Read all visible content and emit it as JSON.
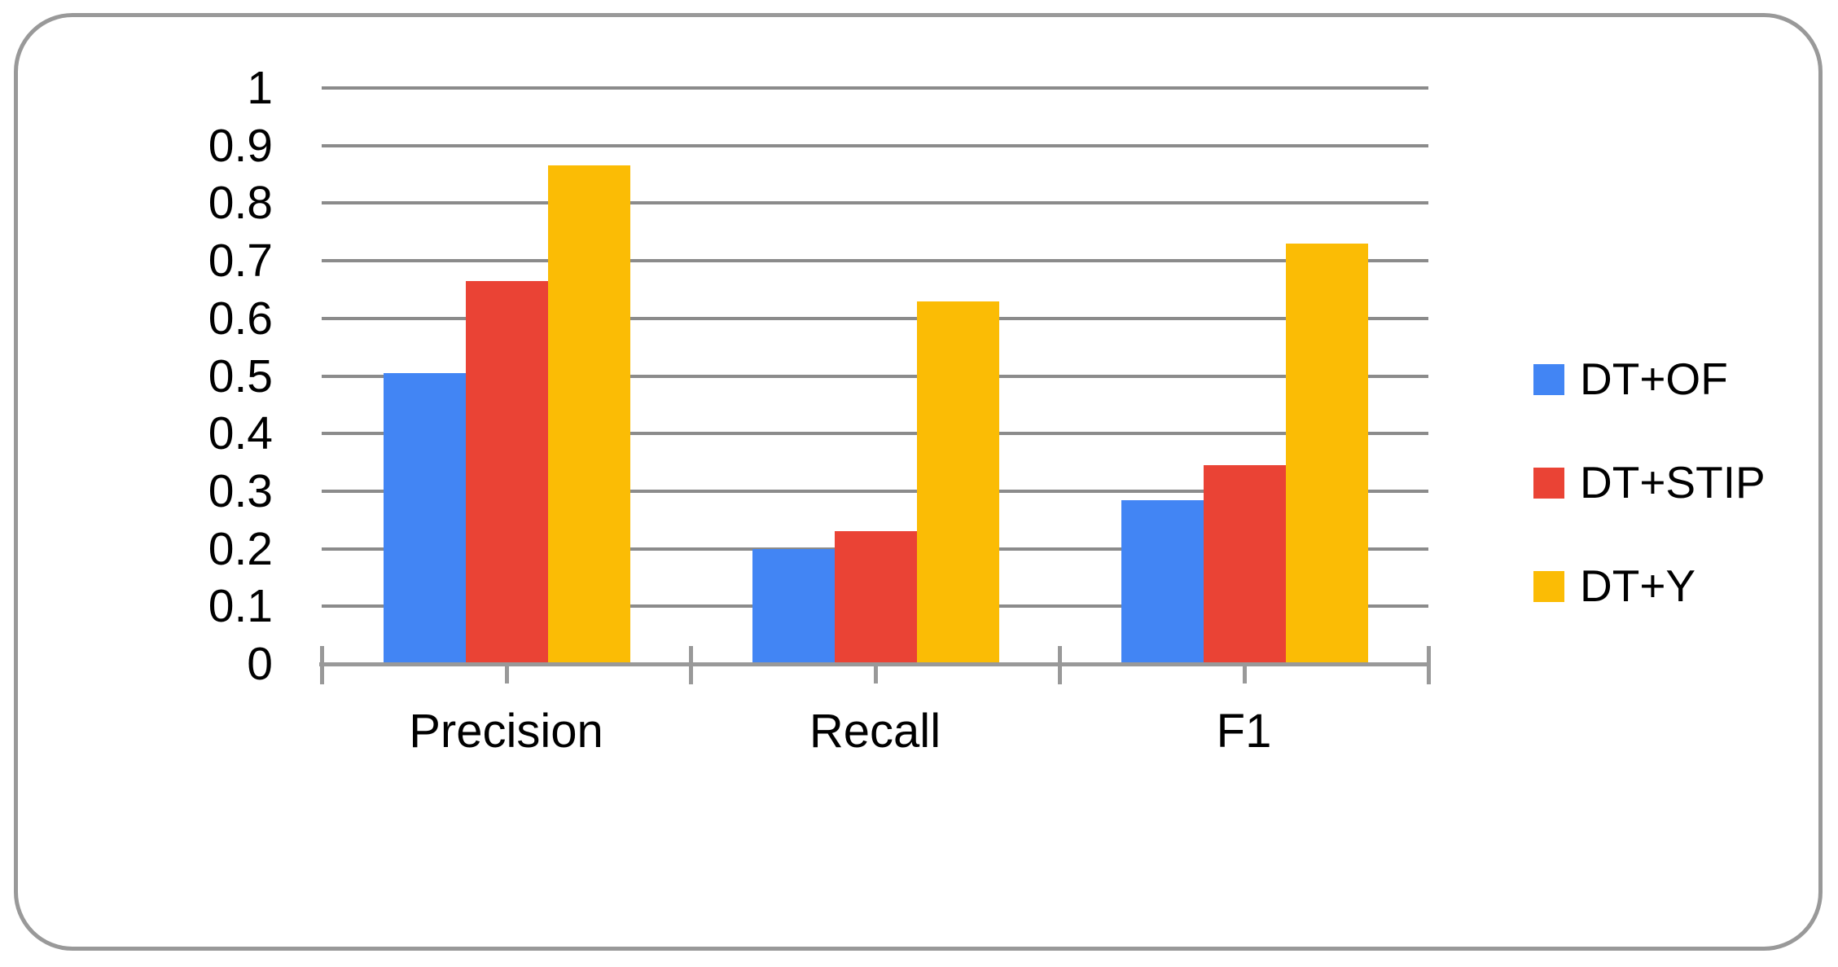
{
  "chart_data": {
    "type": "bar",
    "categories": [
      "Precision",
      "Recall",
      "F1"
    ],
    "series": [
      {
        "name": "DT+OF",
        "color": "#4285F4",
        "values": [
          0.505,
          0.2,
          0.285
        ]
      },
      {
        "name": "DT+STIP",
        "color": "#EA4335",
        "values": [
          0.665,
          0.23,
          0.345
        ]
      },
      {
        "name": "DT+Y",
        "color": "#FBBC05",
        "values": [
          0.865,
          0.63,
          0.73
        ]
      }
    ],
    "title": "",
    "xlabel": "",
    "ylabel": "",
    "ylim": [
      0,
      1
    ],
    "ytick_step": 0.1,
    "ytick_labels": [
      "0",
      "0.1",
      "0.2",
      "0.3",
      "0.4",
      "0.5",
      "0.6",
      "0.7",
      "0.8",
      "0.9",
      "1"
    ],
    "grid": true,
    "legend_position": "right"
  },
  "colors": {
    "grid": "#8B8B8B",
    "axis": "#999999",
    "frame_border": "#999999",
    "label_text": "#000000",
    "background": "#ffffff"
  }
}
